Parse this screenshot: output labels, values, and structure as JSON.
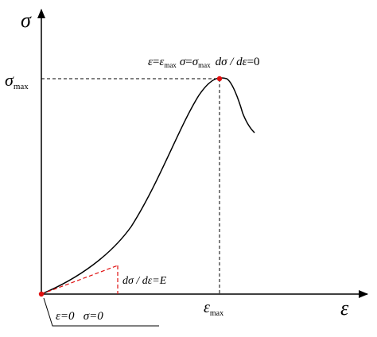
{
  "diagram": {
    "y_axis_symbol": "σ",
    "x_axis_symbol": "ε",
    "y_peak_label": {
      "base": "σ",
      "sub": "max"
    },
    "x_peak_label": {
      "base": "ε",
      "sub": "max"
    },
    "peak_annotation": {
      "eps": "ε",
      "eq1": "=",
      "eps_max_base": "ε",
      "eps_max_sub": "max",
      "sigma": "σ",
      "eq2": "=",
      "sigma_max_base": "σ",
      "sigma_max_sub": "max",
      "derivative": "dσ / dε",
      "eq3": "=0"
    },
    "initial_slope_label": "dσ / dε=E",
    "origin_annotation": "ε=0   σ=0",
    "colors": {
      "axis": "#000000",
      "curve": "#000000",
      "points": "#e01010",
      "tangent": "#e01010"
    }
  }
}
